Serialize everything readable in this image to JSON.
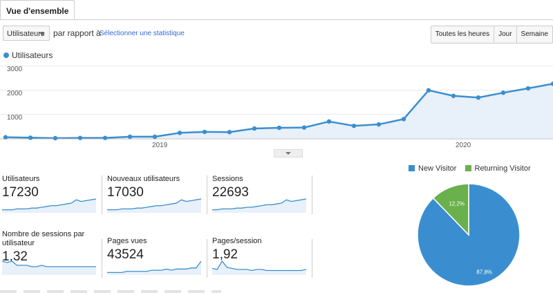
{
  "tab": {
    "label": "Vue d'ensemble"
  },
  "toolbar": {
    "metric_select": "Utilisateurs",
    "vs_label": "par rapport à",
    "pick_metric": "Sélectionner une statistique",
    "granularity": [
      "Toutes les heures",
      "Jour",
      "Semaine"
    ]
  },
  "main_chart": {
    "legend": "Utilisateurs",
    "color": "#3a8ecf",
    "fill": "#e8f0fa",
    "y_ticks": [
      "3000",
      "2000",
      "1000"
    ],
    "x_ticks": [
      "2019",
      "2020"
    ],
    "ylim": [
      0,
      3000
    ],
    "values": [
      40,
      20,
      0,
      10,
      10,
      60,
      60,
      220,
      260,
      250,
      400,
      430,
      440,
      690,
      510,
      570,
      790,
      1980,
      1750,
      1680,
      1880,
      2060,
      2250
    ]
  },
  "metrics": [
    {
      "label": "Utilisateurs",
      "value": "17230",
      "spark": [
        2,
        2,
        2,
        3,
        3,
        3,
        4,
        4,
        5,
        6,
        7,
        7,
        8,
        9,
        10,
        14,
        12,
        13,
        14,
        15
      ]
    },
    {
      "label": "Nouveaux utilisateurs",
      "value": "17030",
      "spark": [
        2,
        2,
        2,
        3,
        3,
        3,
        4,
        4,
        5,
        6,
        7,
        7,
        8,
        9,
        10,
        14,
        12,
        13,
        14,
        15
      ]
    },
    {
      "label": "Sessions",
      "value": "22693",
      "spark": [
        2,
        2,
        3,
        3,
        3,
        4,
        4,
        5,
        5,
        6,
        7,
        8,
        8,
        9,
        10,
        14,
        12,
        13,
        14,
        15
      ]
    },
    {
      "label": "Nombre de sessions par utilisateur",
      "value": "1,32",
      "spark": [
        9,
        8,
        9,
        6,
        6,
        6,
        5,
        5,
        6,
        5,
        5,
        5,
        5,
        5,
        5,
        5,
        5,
        5,
        5,
        5
      ]
    },
    {
      "label": "Pages vues",
      "value": "43524",
      "spark": [
        1,
        1,
        1,
        1,
        2,
        2,
        2,
        2,
        2,
        3,
        3,
        3,
        4,
        3,
        4,
        4,
        4,
        5,
        5,
        11
      ]
    },
    {
      "label": "Pages/session",
      "value": "1,92",
      "spark": [
        5,
        4,
        12,
        6,
        5,
        4,
        4,
        4,
        3,
        4,
        4,
        3,
        3,
        3,
        3,
        3,
        3,
        3,
        3,
        4
      ]
    }
  ],
  "pie": {
    "legend": [
      {
        "name": "New Visitor",
        "color": "#3a8ecf"
      },
      {
        "name": "Returning Visitor",
        "color": "#6ab04c"
      }
    ],
    "slices": [
      {
        "name": "New Visitor",
        "value": 87.8,
        "label": "87,8%",
        "color": "#3a8ecf"
      },
      {
        "name": "Returning Visitor",
        "value": 12.2,
        "label": "12,2%",
        "color": "#6ab04c"
      }
    ]
  }
}
